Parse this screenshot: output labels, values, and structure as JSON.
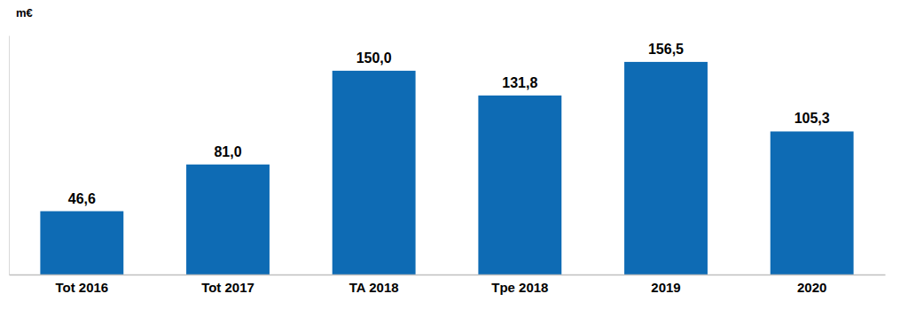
{
  "chart_data": {
    "type": "bar",
    "ylabel": "m€",
    "categories": [
      "Tot 2016",
      "Tot 2017",
      "TA 2018",
      "Tpe 2018",
      "2019",
      "2020"
    ],
    "values": [
      46.6,
      81.0,
      150.0,
      131.8,
      156.5,
      105.3
    ],
    "value_labels": [
      "46,6",
      "81,0",
      "150,0",
      "131,8",
      "156,5",
      "105,3"
    ],
    "color": "#0e6bb4",
    "ylim": [
      0,
      176
    ],
    "grid": false,
    "data_labels": true,
    "tick_labels": "x"
  }
}
